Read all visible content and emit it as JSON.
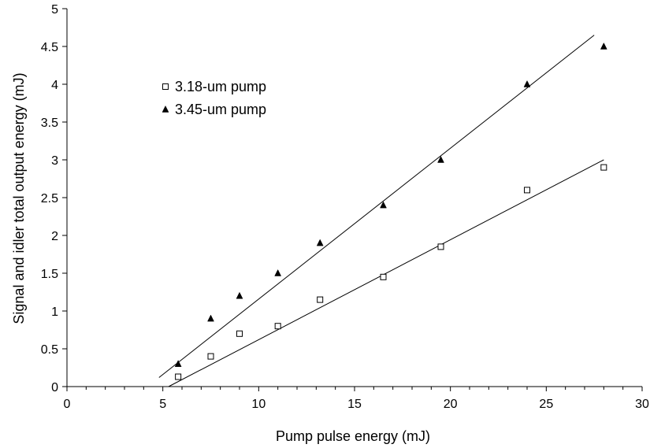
{
  "chart_data": {
    "type": "scatter",
    "xlabel": "Pump pulse energy (mJ)",
    "ylabel": "Signal and idler total output energy (mJ)",
    "xlim": [
      0,
      30
    ],
    "ylim": [
      0,
      5
    ],
    "x_ticks": [
      0,
      5,
      10,
      15,
      20,
      25,
      30
    ],
    "y_ticks": [
      0,
      0.5,
      1,
      1.5,
      2,
      2.5,
      3,
      3.5,
      4,
      4.5,
      5
    ],
    "x_tick_labels": [
      "0",
      "5",
      "10",
      "15",
      "20",
      "25",
      "30"
    ],
    "y_tick_labels": [
      "0",
      "0.5",
      "1",
      "1.5",
      "2",
      "2.5",
      "3",
      "3.5",
      "4",
      "4.5",
      "5"
    ],
    "grid": false,
    "legend_position": "upper-left",
    "series": [
      {
        "name": "3.18-um pump",
        "marker": "open-square",
        "color": "#000000",
        "x": [
          5.8,
          7.5,
          9.0,
          11.0,
          13.2,
          16.5,
          19.5,
          24.0,
          28.0
        ],
        "y": [
          0.13,
          0.4,
          0.7,
          0.8,
          1.15,
          1.45,
          1.85,
          2.6,
          2.9
        ],
        "fit_line": {
          "x": [
            5.3,
            28.0
          ],
          "y": [
            0.0,
            3.0
          ]
        }
      },
      {
        "name": "3.45-um pump",
        "marker": "filled-triangle",
        "color": "#000000",
        "x": [
          5.8,
          7.5,
          9.0,
          11.0,
          13.2,
          16.5,
          19.5,
          24.0,
          28.0
        ],
        "y": [
          0.3,
          0.9,
          1.2,
          1.5,
          1.9,
          2.4,
          3.0,
          4.0,
          4.5
        ],
        "fit_line": {
          "x": [
            4.8,
            27.5
          ],
          "y": [
            0.12,
            4.65
          ]
        }
      }
    ]
  }
}
